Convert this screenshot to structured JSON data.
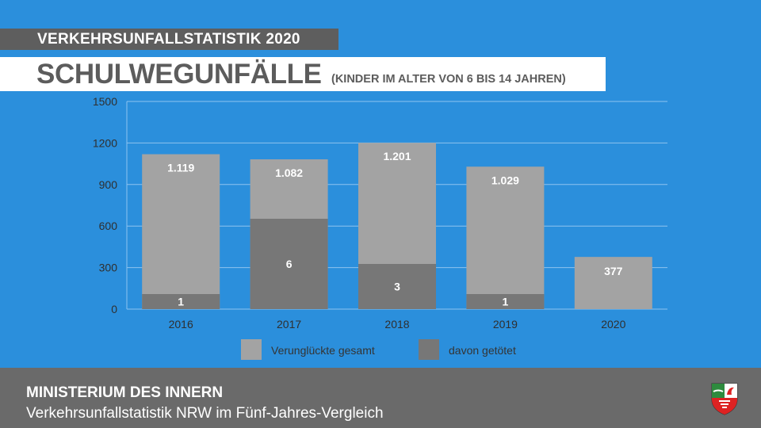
{
  "header": {
    "kicker": "VERKEHRSUNFALLSTATISTIK 2020",
    "title": "SCHULWEGUNFÄLLE",
    "subtitle": "(KINDER IM ALTER VON 6 BIS 14 JAHREN)"
  },
  "chart_data": {
    "type": "bar",
    "stacking": "overlay",
    "categories": [
      "2016",
      "2017",
      "2018",
      "2019",
      "2020"
    ],
    "series": [
      {
        "name": "Verunglückte gesamt",
        "values": [
          1119,
          1082,
          1201,
          1029,
          377
        ],
        "labels": [
          "1.119",
          "1.082",
          "1.201",
          "1.029",
          "377"
        ],
        "color": "#a3a3a3"
      },
      {
        "name": "davon getötet",
        "values": [
          1,
          6,
          3,
          1,
          0
        ],
        "labels": [
          "1",
          "6",
          "3",
          "1",
          ""
        ],
        "color": "#777777"
      }
    ],
    "ylim": [
      0,
      1500
    ],
    "yticks": [
      0,
      300,
      600,
      900,
      1200,
      1500
    ],
    "grid": true,
    "legend": "bottom"
  },
  "footer": {
    "org": "MINISTERIUM DES INNERN",
    "subtitle": "Verkehrsunfallstatistik NRW im Fünf-Jahres-Vergleich"
  },
  "logo": {
    "icon": "nrw-coat-of-arms-icon"
  }
}
